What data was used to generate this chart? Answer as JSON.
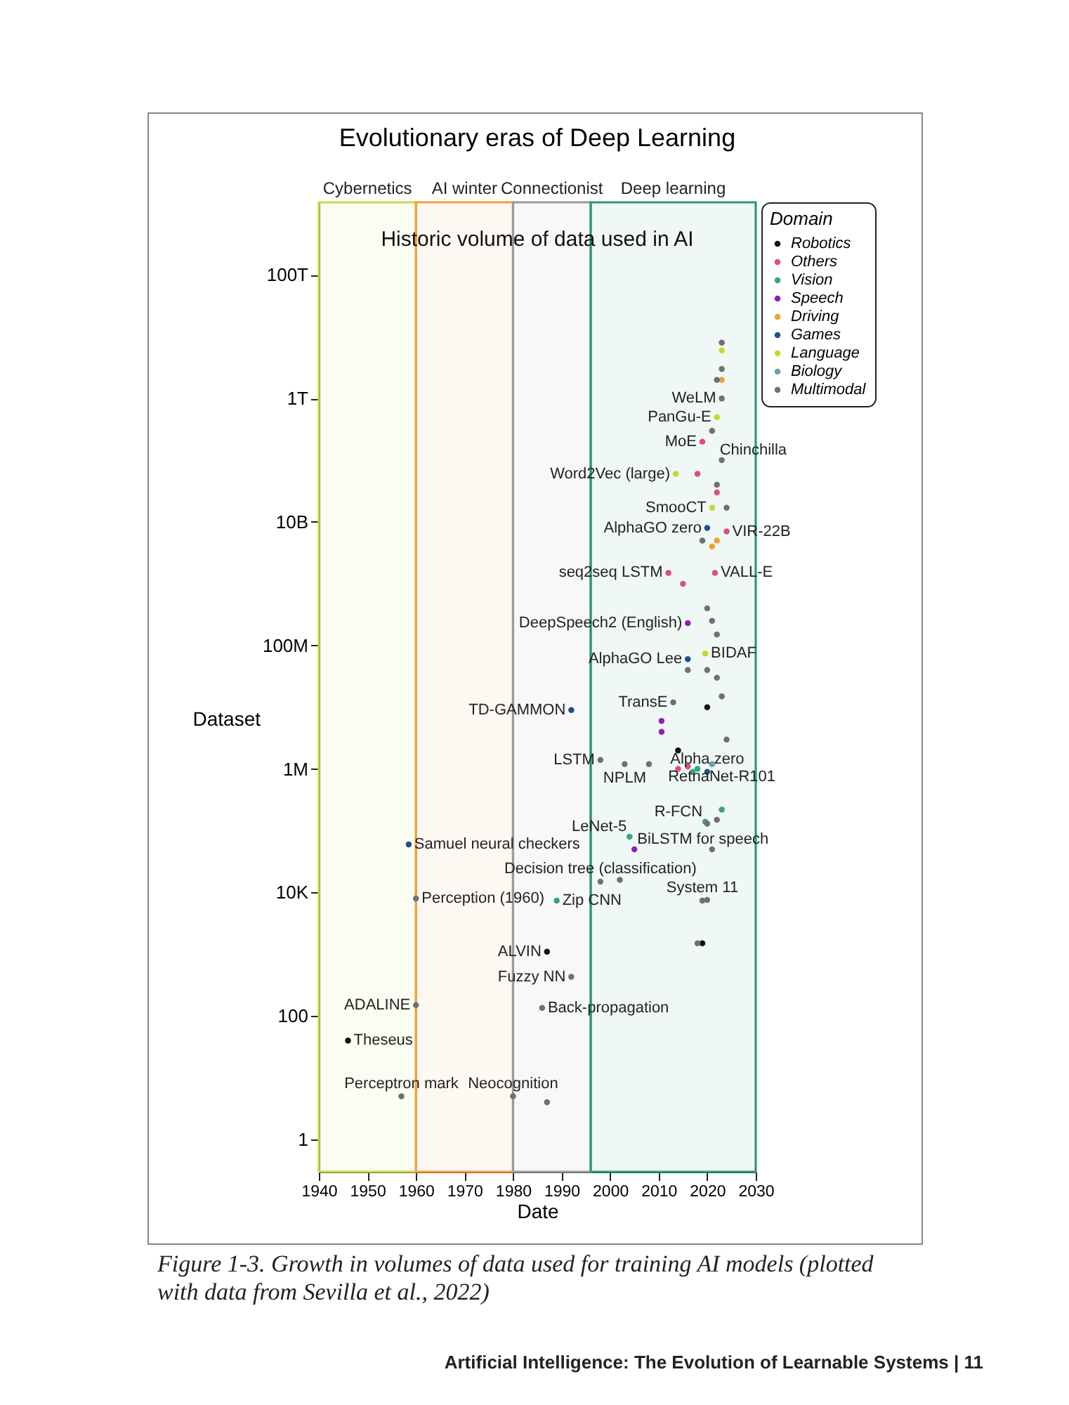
{
  "chart_data": {
    "type": "scatter",
    "title": "Evolutionary eras of Deep Learning",
    "subtitle": "Historic volume of data used in AI",
    "xlabel": "Date",
    "ylabel": "Dataset",
    "legend_title": "Domain",
    "legend": "top right",
    "marker": "circle",
    "grid": false,
    "log": "y",
    "xlim": [
      1940,
      2030
    ],
    "xticks": [
      1940,
      1950,
      1960,
      1970,
      1980,
      1990,
      2000,
      2010,
      2020,
      2030
    ],
    "ylim": [
      0.3,
      1500000000000000
    ],
    "yticks": [
      1,
      100,
      {
        "value": 10000,
        "label": "10K"
      },
      {
        "value": 1000000,
        "label": "1M"
      },
      {
        "value": 100000000,
        "label": "100M"
      },
      {
        "value": 10000000000,
        "label": "10B"
      },
      {
        "value": 1000000000000,
        "label": "1T"
      },
      {
        "value": 100000000000000,
        "label": "100T"
      }
    ],
    "bands": [
      {
        "axis": "x",
        "from": 1940,
        "to": 1960,
        "label": "Cybernetics",
        "color": "#c9d84a"
      },
      {
        "axis": "x",
        "from": 1960,
        "to": 1980,
        "label": "AI winter",
        "color": "#f0a040"
      },
      {
        "axis": "x",
        "from": 1980,
        "to": 1996,
        "label": "Connectionist",
        "color": "#9a9a9a"
      },
      {
        "axis": "x",
        "from": 1996,
        "to": 2030,
        "label": "Deep learning",
        "color": "#2a9a7a"
      }
    ],
    "series": [
      {
        "name": "Robotics",
        "color": "#111111",
        "x": [
          1946,
          1987,
          2019,
          2014,
          2020
        ],
        "values": [
          40,
          1100,
          1500,
          2000000,
          10000000
        ]
      },
      {
        "name": "Others",
        "color": "#d9536b",
        "x": [
          2012,
          2021.6,
          2015,
          2014,
          2016,
          2018,
          2019,
          2022,
          2024
        ],
        "values": [
          1500000000,
          1500000000,
          1000000000,
          1000000,
          1100000,
          60000000000,
          200000000000,
          30000000000,
          7000000000
        ]
      },
      {
        "name": "Vision",
        "color": "#3aa37f",
        "x": [
          1989,
          2019.6,
          2023,
          2017,
          2018,
          2004
        ],
        "values": [
          7400,
          140000,
          220000,
          900000,
          1000000,
          80000
        ]
      },
      {
        "name": "Speech",
        "color": "#8e1fb8",
        "x": [
          2010.6,
          2010.6,
          2005,
          2016
        ],
        "values": [
          4000000,
          6000000,
          50000,
          230000000
        ]
      },
      {
        "name": "Driving",
        "color": "#f0a030",
        "x": [
          2022,
          2021,
          2023
        ],
        "values": [
          5000000000,
          4000000000,
          2000000000000
        ]
      },
      {
        "name": "Games",
        "color": "#1f4e8c",
        "x": [
          1992,
          2016,
          2020,
          2020,
          1958.5
        ],
        "values": [
          9000000,
          60000000,
          8000000000,
          900000,
          60000
        ]
      },
      {
        "name": "Language",
        "color": "#c8d82a",
        "x": [
          2019.6,
          2023,
          2022,
          2021,
          2013.5
        ],
        "values": [
          74000000,
          6000000000000,
          500000000000,
          17000000000,
          60000000000
        ]
      },
      {
        "name": "Biology",
        "color": "#6aa0a8",
        "x": [
          2021
        ],
        "values": [
          1200000
        ]
      },
      {
        "name": "Multimodal",
        "color": "#707070",
        "x": [
          1957,
          1960,
          1960,
          1980,
          1987,
          1986,
          1992,
          1998,
          2002,
          2019,
          2020,
          2018,
          2021,
          2020,
          2022,
          1998,
          2003,
          2008,
          2013,
          2016,
          2020,
          2022,
          2023,
          2024,
          2022,
          2021,
          2020,
          2019,
          2024,
          2022,
          2023,
          2021,
          2023,
          2022,
          2023,
          2023
        ],
        "values": [
          5,
          8000,
          150,
          5,
          4,
          135,
          430,
          15000,
          16000,
          7400,
          7600,
          1500,
          50000,
          130000,
          150000,
          1400000,
          1200000,
          1200000,
          12000000,
          40000000,
          40000000,
          30000000,
          15000000,
          3000000,
          150000000,
          250000000,
          400000000,
          5000000000,
          17000000000,
          40000000000,
          100000000000,
          300000000000,
          1000000000000,
          2000000000000,
          3000000000000,
          8000000000000
        ]
      }
    ],
    "annotations": [
      {
        "text": "Theseus",
        "x": 1946,
        "y": 40
      },
      {
        "text": "Perceptron mark",
        "x": 1957,
        "y": 5
      },
      {
        "text": "Samuel neural checkers",
        "x": 1958.5,
        "y": 60000
      },
      {
        "text": "Perception (1960)",
        "x": 1960,
        "y": 8000
      },
      {
        "text": "ADALINE",
        "x": 1960,
        "y": 150
      },
      {
        "text": "Neocognition",
        "x": 1980,
        "y": 5
      },
      {
        "text": "Back-propagation",
        "x": 1986,
        "y": 135
      },
      {
        "text": "Fuzzy NN",
        "x": 1992,
        "y": 430
      },
      {
        "text": "ALVIN",
        "x": 1987,
        "y": 1100
      },
      {
        "text": "Zip CNN",
        "x": 1989,
        "y": 7400
      },
      {
        "text": "Decision tree (classification)",
        "x": 1998,
        "y": 15000
      },
      {
        "text": "System 11",
        "x": 2019,
        "y": 7400
      },
      {
        "text": "BiLSTM for speech",
        "x": 2005,
        "y": 50000
      },
      {
        "text": "LeNet-5",
        "x": 2004,
        "y": 80000
      },
      {
        "text": "R-FCN",
        "x": 2019.6,
        "y": 140000
      },
      {
        "text": "RetnaNet-R101",
        "x": 2023,
        "y": 220000
      },
      {
        "text": "Alpha zero",
        "x": 2020,
        "y": 900000
      },
      {
        "text": "LSTM",
        "x": 1998,
        "y": 1400000
      },
      {
        "text": "NPLM",
        "x": 2003,
        "y": 1200000
      },
      {
        "text": "TD-GAMMON",
        "x": 1992,
        "y": 9000000
      },
      {
        "text": "TransE",
        "x": 2013,
        "y": 12000000
      },
      {
        "text": "AlphaGO Lee",
        "x": 2016,
        "y": 60000000
      },
      {
        "text": "BIDAF",
        "x": 2019.6,
        "y": 74000000
      },
      {
        "text": "DeepSpeech2 (English)",
        "x": 2016,
        "y": 230000000
      },
      {
        "text": "seq2seq LSTM",
        "x": 2012,
        "y": 1500000000
      },
      {
        "text": "VALL-E",
        "x": 2021.6,
        "y": 1500000000
      },
      {
        "text": "AlphaGO zero",
        "x": 2020,
        "y": 8000000000
      },
      {
        "text": "VIR-22B",
        "x": 2024,
        "y": 7000000000
      },
      {
        "text": "SmooCT",
        "x": 2021,
        "y": 17000000000
      },
      {
        "text": "Word2Vec (large)",
        "x": 2013.5,
        "y": 60000000000
      },
      {
        "text": "MoE",
        "x": 2019,
        "y": 200000000000
      },
      {
        "text": "Chinchilla",
        "x": 2022,
        "y": 100000000000
      },
      {
        "text": "PanGu-E",
        "x": 2022,
        "y": 500000000000
      },
      {
        "text": "WeLM",
        "x": 2023,
        "y": 1000000000000
      },
      "Figure 1-3. Growth in volumes of data used for training AI models (plotted with data from Sevilla et al., 2022)",
      "Artificial Intelligence: The Evolution of Learnable Systems | 11"
    ]
  }
}
